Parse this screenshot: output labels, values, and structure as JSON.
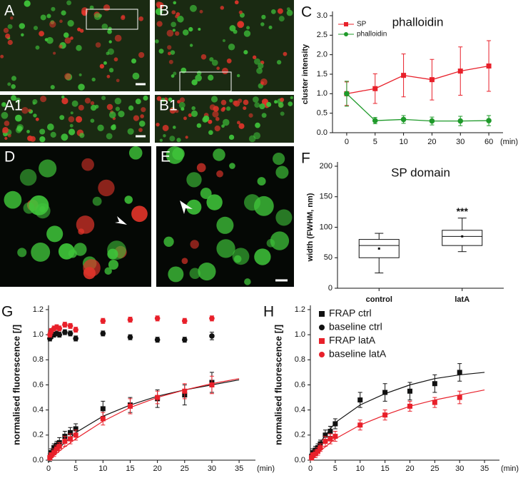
{
  "image_panels": [
    {
      "label": "A"
    },
    {
      "label": "B"
    },
    {
      "label": "A1"
    },
    {
      "label": "B1"
    },
    {
      "label": "D"
    },
    {
      "label": "E"
    }
  ],
  "chart_data": [
    {
      "type": "line",
      "panel": "C",
      "title": "phalloidin",
      "ylabel": "cluster intensity",
      "xlabel": "(min)",
      "categories": [
        "0",
        "5",
        "10",
        "20",
        "30",
        "60"
      ],
      "ylim": [
        0,
        3
      ],
      "yticks": [
        {
          "value": 0,
          "label": "0.0"
        },
        0.5,
        {
          "value": 1,
          "label": "1.0"
        },
        1.5,
        {
          "value": 2,
          "label": "2.0"
        },
        2.5,
        {
          "value": 3,
          "label": "3.0"
        }
      ],
      "legend": "upper-left",
      "series": [
        {
          "name": "SP",
          "color": "#e8202a",
          "marker": "square",
          "values": [
            1.0,
            1.13,
            1.47,
            1.36,
            1.58,
            1.71
          ],
          "errors": [
            0.3,
            0.38,
            0.55,
            0.52,
            0.62,
            0.65
          ]
        },
        {
          "name": "phalloidin",
          "color": "#1f9a2a",
          "marker": "circle",
          "values": [
            1.0,
            0.31,
            0.34,
            0.3,
            0.3,
            0.31
          ],
          "errors": [
            0.32,
            0.08,
            0.1,
            0.1,
            0.12,
            0.13
          ]
        }
      ]
    },
    {
      "type": "box",
      "panel": "F",
      "title": "SP domain",
      "ylabel": "width (FWHM, nm)",
      "categories": [
        "control",
        "latA"
      ],
      "ylim": [
        0,
        200
      ],
      "yticks": [
        0,
        50,
        100,
        150,
        200
      ],
      "boxes": [
        {
          "min": 25,
          "q1": 50,
          "median": 70,
          "q3": 80,
          "max": 90,
          "mean": 65
        },
        {
          "min": 60,
          "q1": 70,
          "median": 85,
          "q3": 95,
          "max": 115,
          "mean": 85
        }
      ],
      "annotations": [
        {
          "category": 1,
          "text": "***",
          "y": 125
        }
      ]
    },
    {
      "type": "scatter",
      "panel": "G",
      "ylabel": "normalised fluorescence [/]",
      "xlabel": "(min)",
      "xlim": [
        0,
        38
      ],
      "xticks": [
        0,
        5,
        10,
        15,
        20,
        25,
        30,
        35
      ],
      "ylim": [
        0,
        1.2
      ],
      "yticks": [
        {
          "value": 0,
          "label": "0.0"
        },
        0.2,
        0.4,
        0.6,
        0.8,
        {
          "value": 1,
          "label": "1.0"
        },
        1.2
      ],
      "series": [
        {
          "name": "FRAP ctrl",
          "color": "#111111",
          "marker": "square",
          "x": [
            0.25,
            0.5,
            1,
            1.5,
            2,
            3,
            4,
            5,
            10,
            15,
            20,
            25,
            30
          ],
          "values": [
            0.02,
            0.06,
            0.1,
            0.12,
            0.14,
            0.19,
            0.22,
            0.25,
            0.41,
            0.44,
            0.49,
            0.52,
            0.62
          ],
          "errors": [
            0.03,
            0.03,
            0.03,
            0.03,
            0.04,
            0.04,
            0.04,
            0.04,
            0.06,
            0.06,
            0.07,
            0.08,
            0.08
          ]
        },
        {
          "name": "baseline ctrl",
          "color": "#111111",
          "marker": "circle",
          "x": [
            0.25,
            0.5,
            1,
            1.5,
            2,
            3,
            4,
            5,
            10,
            15,
            20,
            25,
            30
          ],
          "values": [
            0.97,
            0.99,
            1.0,
            1.01,
            1.0,
            1.02,
            1.01,
            0.97,
            1.01,
            0.98,
            0.96,
            0.96,
            0.99
          ],
          "errors": [
            0.02,
            0.02,
            0.02,
            0.02,
            0.02,
            0.02,
            0.02,
            0.02,
            0.02,
            0.02,
            0.02,
            0.02,
            0.03
          ]
        },
        {
          "name": "FRAP latA",
          "color": "#e8202a",
          "marker": "square",
          "x": [
            0.25,
            0.5,
            1,
            1.5,
            2,
            3,
            4,
            5,
            10,
            15,
            20,
            25,
            30
          ],
          "values": [
            0.02,
            0.04,
            0.06,
            0.09,
            0.11,
            0.15,
            0.17,
            0.2,
            0.33,
            0.43,
            0.5,
            0.55,
            0.6
          ],
          "errors": [
            0.02,
            0.02,
            0.03,
            0.03,
            0.03,
            0.04,
            0.04,
            0.04,
            0.05,
            0.06,
            0.05,
            0.06,
            0.07
          ]
        },
        {
          "name": "baseline latA",
          "color": "#e8202a",
          "marker": "circle",
          "x": [
            0.25,
            0.5,
            1,
            1.5,
            2,
            3,
            4,
            5,
            10,
            15,
            20,
            25,
            30
          ],
          "values": [
            1.0,
            1.03,
            1.05,
            1.06,
            1.05,
            1.08,
            1.07,
            1.04,
            1.11,
            1.12,
            1.13,
            1.11,
            1.13
          ],
          "errors": [
            0.02,
            0.02,
            0.02,
            0.02,
            0.02,
            0.02,
            0.02,
            0.02,
            0.02,
            0.02,
            0.02,
            0.02,
            0.02
          ]
        }
      ],
      "fits": [
        {
          "color": "#111111",
          "x": [
            0,
            2.5,
            5,
            10,
            15,
            20,
            25,
            30,
            35
          ],
          "values": [
            0,
            0.12,
            0.22,
            0.35,
            0.44,
            0.51,
            0.56,
            0.6,
            0.64
          ]
        },
        {
          "color": "#e8202a",
          "x": [
            0,
            2.5,
            5,
            10,
            15,
            20,
            25,
            30,
            35
          ],
          "values": [
            0,
            0.09,
            0.17,
            0.31,
            0.42,
            0.5,
            0.56,
            0.61,
            0.65
          ]
        }
      ]
    },
    {
      "type": "scatter",
      "panel": "H",
      "ylabel": "normalised fluorescence [/]",
      "xlabel": "(min)",
      "legend": "upper-left",
      "xlim": [
        0,
        38
      ],
      "xticks": [
        0,
        5,
        10,
        15,
        20,
        25,
        30,
        35
      ],
      "ylim": [
        0,
        1.2
      ],
      "yticks": [
        {
          "value": 0,
          "label": "0.0"
        },
        0.2,
        0.4,
        0.6,
        0.8,
        {
          "value": 1,
          "label": "1.0"
        },
        1.2
      ],
      "series": [
        {
          "name": "FRAP ctrl",
          "color": "#111111",
          "marker": "square",
          "x": [
            0.25,
            0.5,
            1,
            1.5,
            2,
            3,
            4,
            5,
            10,
            15,
            20,
            25,
            30
          ],
          "values": [
            0.03,
            0.06,
            0.08,
            0.1,
            0.13,
            0.2,
            0.23,
            0.29,
            0.48,
            0.54,
            0.55,
            0.61,
            0.7
          ],
          "errors": [
            0.02,
            0.03,
            0.03,
            0.03,
            0.03,
            0.04,
            0.04,
            0.04,
            0.06,
            0.07,
            0.07,
            0.07,
            0.07
          ]
        },
        {
          "name": "baseline ctrl",
          "color": "#111111",
          "marker": "circle",
          "x": [],
          "values": [],
          "errors": []
        },
        {
          "name": "FRAP latA",
          "color": "#e8202a",
          "marker": "square",
          "x": [
            0.25,
            0.5,
            1,
            1.5,
            2,
            3,
            4,
            5,
            10,
            15,
            20,
            25,
            30
          ],
          "values": [
            0.02,
            0.04,
            0.05,
            0.07,
            0.1,
            0.15,
            0.17,
            0.19,
            0.28,
            0.36,
            0.43,
            0.46,
            0.5
          ],
          "errors": [
            0.02,
            0.02,
            0.03,
            0.03,
            0.03,
            0.04,
            0.04,
            0.04,
            0.04,
            0.04,
            0.04,
            0.04,
            0.05
          ]
        },
        {
          "name": "baseline latA",
          "color": "#e8202a",
          "marker": "circle",
          "x": [],
          "values": [],
          "errors": []
        }
      ],
      "fits": [
        {
          "color": "#111111",
          "x": [
            0,
            2.5,
            5,
            10,
            15,
            20,
            25,
            30,
            35
          ],
          "values": [
            0,
            0.17,
            0.3,
            0.44,
            0.53,
            0.6,
            0.65,
            0.68,
            0.7
          ]
        },
        {
          "color": "#e8202a",
          "x": [
            0,
            2.5,
            5,
            10,
            15,
            20,
            25,
            30,
            35
          ],
          "values": [
            0,
            0.09,
            0.17,
            0.28,
            0.36,
            0.43,
            0.48,
            0.52,
            0.56
          ]
        }
      ]
    }
  ]
}
